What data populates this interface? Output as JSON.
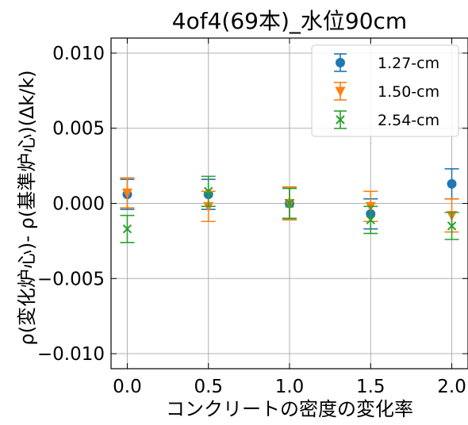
{
  "chart_data": {
    "type": "scatter",
    "title": "4of4(69本)_水位90cm",
    "xlabel": "コンクリートの密度の変化率",
    "ylabel": "ρ(変化炉心)- ρ(基準炉心)(Δk/k)",
    "xlim": [
      -0.1,
      2.1
    ],
    "ylim": [
      -0.011,
      0.011
    ],
    "x_ticks": [
      0.0,
      0.5,
      1.0,
      1.5,
      2.0
    ],
    "x_tick_labels": [
      "0.0",
      "0.5",
      "1.0",
      "1.5",
      "2.0"
    ],
    "y_ticks": [
      0.01,
      0.005,
      0.0,
      -0.005,
      -0.01
    ],
    "y_tick_labels": [
      "0.010",
      "0.005",
      "0.000",
      "−0.005",
      "−0.010"
    ],
    "grid": true,
    "legend_position": "top-right",
    "series": [
      {
        "name": "1.27-cm",
        "color": "#1f77b4",
        "marker": "circle",
        "x": [
          0.0,
          0.5,
          1.0,
          1.5,
          2.0
        ],
        "y": [
          0.0006,
          0.0006,
          0.0,
          -0.0007,
          0.0013
        ],
        "yerr": [
          0.001,
          0.001,
          0.001,
          0.001,
          0.001
        ]
      },
      {
        "name": "1.50-cm",
        "color": "#ff7f0e",
        "marker": "triangle-down",
        "x": [
          0.0,
          0.5,
          1.0,
          1.5,
          2.0
        ],
        "y": [
          0.0007,
          -0.0002,
          0.0,
          -0.0002,
          -0.0008
        ],
        "yerr": [
          0.001,
          0.001,
          0.0011,
          0.001,
          0.0011
        ]
      },
      {
        "name": "2.54-cm",
        "color": "#2ca02c",
        "marker": "x",
        "x": [
          0.0,
          0.5,
          1.0,
          1.5,
          2.0
        ],
        "y": [
          -0.0017,
          0.0008,
          0.0,
          -0.0011,
          -0.0015
        ],
        "yerr": [
          0.0009,
          0.001,
          0.001,
          0.0009,
          0.0009
        ]
      }
    ]
  }
}
